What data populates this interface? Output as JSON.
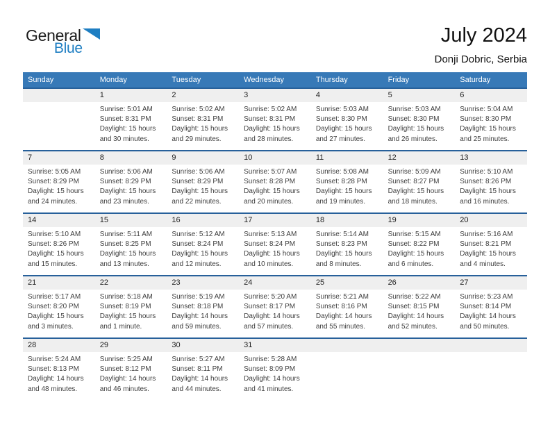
{
  "logo": {
    "general": "General",
    "blue": "Blue"
  },
  "title": "July 2024",
  "subtitle": "Donji Dobric, Serbia",
  "weekdays": [
    "Sunday",
    "Monday",
    "Tuesday",
    "Wednesday",
    "Thursday",
    "Friday",
    "Saturday"
  ],
  "colors": {
    "header_blue": "#3779b7",
    "separator_blue": "#27609a",
    "strip_gray": "#efefef",
    "logo_blue": "#1e7ec2"
  },
  "weeks": [
    [
      null,
      {
        "day": "1",
        "lines": [
          "Sunrise: 5:01 AM",
          "Sunset: 8:31 PM",
          "Daylight: 15 hours",
          "and 30 minutes."
        ]
      },
      {
        "day": "2",
        "lines": [
          "Sunrise: 5:02 AM",
          "Sunset: 8:31 PM",
          "Daylight: 15 hours",
          "and 29 minutes."
        ]
      },
      {
        "day": "3",
        "lines": [
          "Sunrise: 5:02 AM",
          "Sunset: 8:31 PM",
          "Daylight: 15 hours",
          "and 28 minutes."
        ]
      },
      {
        "day": "4",
        "lines": [
          "Sunrise: 5:03 AM",
          "Sunset: 8:30 PM",
          "Daylight: 15 hours",
          "and 27 minutes."
        ]
      },
      {
        "day": "5",
        "lines": [
          "Sunrise: 5:03 AM",
          "Sunset: 8:30 PM",
          "Daylight: 15 hours",
          "and 26 minutes."
        ]
      },
      {
        "day": "6",
        "lines": [
          "Sunrise: 5:04 AM",
          "Sunset: 8:30 PM",
          "Daylight: 15 hours",
          "and 25 minutes."
        ]
      }
    ],
    [
      {
        "day": "7",
        "lines": [
          "Sunrise: 5:05 AM",
          "Sunset: 8:29 PM",
          "Daylight: 15 hours",
          "and 24 minutes."
        ]
      },
      {
        "day": "8",
        "lines": [
          "Sunrise: 5:06 AM",
          "Sunset: 8:29 PM",
          "Daylight: 15 hours",
          "and 23 minutes."
        ]
      },
      {
        "day": "9",
        "lines": [
          "Sunrise: 5:06 AM",
          "Sunset: 8:29 PM",
          "Daylight: 15 hours",
          "and 22 minutes."
        ]
      },
      {
        "day": "10",
        "lines": [
          "Sunrise: 5:07 AM",
          "Sunset: 8:28 PM",
          "Daylight: 15 hours",
          "and 20 minutes."
        ]
      },
      {
        "day": "11",
        "lines": [
          "Sunrise: 5:08 AM",
          "Sunset: 8:28 PM",
          "Daylight: 15 hours",
          "and 19 minutes."
        ]
      },
      {
        "day": "12",
        "lines": [
          "Sunrise: 5:09 AM",
          "Sunset: 8:27 PM",
          "Daylight: 15 hours",
          "and 18 minutes."
        ]
      },
      {
        "day": "13",
        "lines": [
          "Sunrise: 5:10 AM",
          "Sunset: 8:26 PM",
          "Daylight: 15 hours",
          "and 16 minutes."
        ]
      }
    ],
    [
      {
        "day": "14",
        "lines": [
          "Sunrise: 5:10 AM",
          "Sunset: 8:26 PM",
          "Daylight: 15 hours",
          "and 15 minutes."
        ]
      },
      {
        "day": "15",
        "lines": [
          "Sunrise: 5:11 AM",
          "Sunset: 8:25 PM",
          "Daylight: 15 hours",
          "and 13 minutes."
        ]
      },
      {
        "day": "16",
        "lines": [
          "Sunrise: 5:12 AM",
          "Sunset: 8:24 PM",
          "Daylight: 15 hours",
          "and 12 minutes."
        ]
      },
      {
        "day": "17",
        "lines": [
          "Sunrise: 5:13 AM",
          "Sunset: 8:24 PM",
          "Daylight: 15 hours",
          "and 10 minutes."
        ]
      },
      {
        "day": "18",
        "lines": [
          "Sunrise: 5:14 AM",
          "Sunset: 8:23 PM",
          "Daylight: 15 hours",
          "and 8 minutes."
        ]
      },
      {
        "day": "19",
        "lines": [
          "Sunrise: 5:15 AM",
          "Sunset: 8:22 PM",
          "Daylight: 15 hours",
          "and 6 minutes."
        ]
      },
      {
        "day": "20",
        "lines": [
          "Sunrise: 5:16 AM",
          "Sunset: 8:21 PM",
          "Daylight: 15 hours",
          "and 4 minutes."
        ]
      }
    ],
    [
      {
        "day": "21",
        "lines": [
          "Sunrise: 5:17 AM",
          "Sunset: 8:20 PM",
          "Daylight: 15 hours",
          "and 3 minutes."
        ]
      },
      {
        "day": "22",
        "lines": [
          "Sunrise: 5:18 AM",
          "Sunset: 8:19 PM",
          "Daylight: 15 hours",
          "and 1 minute."
        ]
      },
      {
        "day": "23",
        "lines": [
          "Sunrise: 5:19 AM",
          "Sunset: 8:18 PM",
          "Daylight: 14 hours",
          "and 59 minutes."
        ]
      },
      {
        "day": "24",
        "lines": [
          "Sunrise: 5:20 AM",
          "Sunset: 8:17 PM",
          "Daylight: 14 hours",
          "and 57 minutes."
        ]
      },
      {
        "day": "25",
        "lines": [
          "Sunrise: 5:21 AM",
          "Sunset: 8:16 PM",
          "Daylight: 14 hours",
          "and 55 minutes."
        ]
      },
      {
        "day": "26",
        "lines": [
          "Sunrise: 5:22 AM",
          "Sunset: 8:15 PM",
          "Daylight: 14 hours",
          "and 52 minutes."
        ]
      },
      {
        "day": "27",
        "lines": [
          "Sunrise: 5:23 AM",
          "Sunset: 8:14 PM",
          "Daylight: 14 hours",
          "and 50 minutes."
        ]
      }
    ],
    [
      {
        "day": "28",
        "lines": [
          "Sunrise: 5:24 AM",
          "Sunset: 8:13 PM",
          "Daylight: 14 hours",
          "and 48 minutes."
        ]
      },
      {
        "day": "29",
        "lines": [
          "Sunrise: 5:25 AM",
          "Sunset: 8:12 PM",
          "Daylight: 14 hours",
          "and 46 minutes."
        ]
      },
      {
        "day": "30",
        "lines": [
          "Sunrise: 5:27 AM",
          "Sunset: 8:11 PM",
          "Daylight: 14 hours",
          "and 44 minutes."
        ]
      },
      {
        "day": "31",
        "lines": [
          "Sunrise: 5:28 AM",
          "Sunset: 8:09 PM",
          "Daylight: 14 hours",
          "and 41 minutes."
        ]
      },
      null,
      null,
      null
    ]
  ]
}
